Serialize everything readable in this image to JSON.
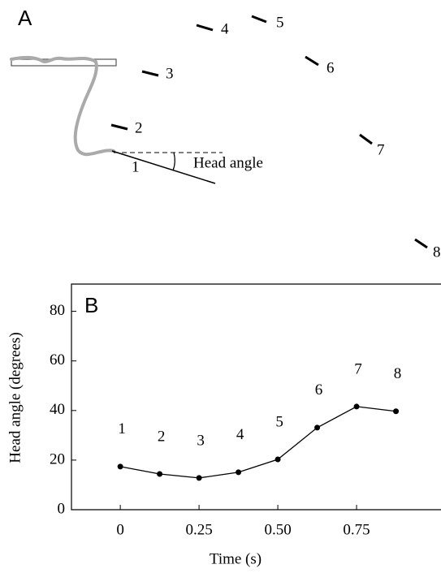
{
  "diagram": {
    "panel_label": "A",
    "angle_label": "Head angle",
    "frame_labels": [
      "1",
      "2",
      "3",
      "4",
      "5",
      "6",
      "7",
      "8"
    ]
  },
  "chart_data": {
    "type": "line",
    "panel_label": "B",
    "x_label": "Time (s)",
    "y_label": "Head angle (degrees)",
    "x": [
      0,
      0.125,
      0.25,
      0.375,
      0.5,
      0.625,
      0.75,
      0.875
    ],
    "values": [
      17.4,
      14.4,
      12.8,
      15.1,
      20.3,
      33.1,
      41.6,
      39.7
    ],
    "point_labels": [
      "1",
      "2",
      "3",
      "4",
      "5",
      "6",
      "7",
      "8"
    ],
    "color": "#000000",
    "xlim": [
      -0.155,
      1.018
    ],
    "ylim": [
      0,
      91
    ],
    "xticks": [
      0,
      0.25,
      {
        "value": 0.5,
        "label": "0.50"
      },
      0.75
    ],
    "yticks": [
      0,
      20,
      40,
      60,
      80
    ]
  }
}
